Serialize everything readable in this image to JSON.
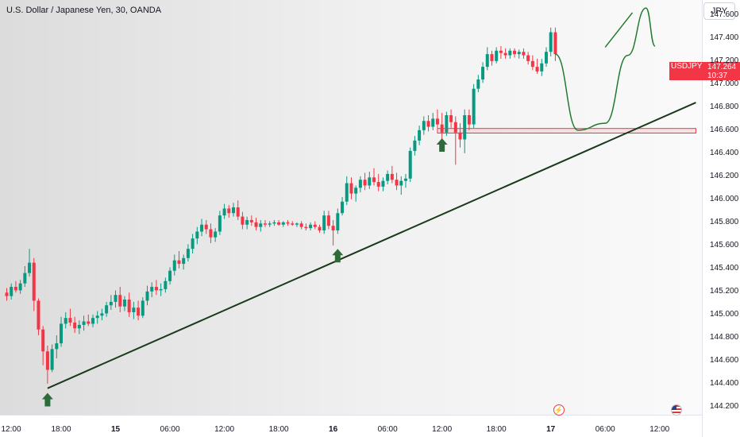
{
  "header": {
    "title": "U.S. Dollar / Japanese Yen, 30, OANDA",
    "currency_button": "JPY"
  },
  "price_badge": {
    "symbol": "USDJPY",
    "price": "147.264",
    "countdown": "10:37"
  },
  "colors": {
    "bull": "#089981",
    "bear": "#f23645",
    "trendline": "#1b3a1b",
    "zone": "#f23645",
    "arrows": "#2e6b3a",
    "projection": "#237a2f"
  },
  "events": {
    "flash_icon": "flash-icon",
    "flag_icon": "us-flag-icon"
  },
  "chart_data": {
    "type": "candlestick",
    "ylim": [
      144.13,
      147.73
    ],
    "y_ticks": [
      "147.600",
      "147.400",
      "147.200",
      "147.000",
      "146.800",
      "146.600",
      "146.400",
      "146.200",
      "146.000",
      "145.800",
      "145.600",
      "145.400",
      "145.200",
      "145.000",
      "144.800",
      "144.600",
      "144.400",
      "144.200"
    ],
    "x_ticks": [
      {
        "label": "12:00",
        "bar": 0,
        "bold": false
      },
      {
        "label": "18:00",
        "bar": 12,
        "bold": false
      },
      {
        "label": "15",
        "bar": 24,
        "bold": true
      },
      {
        "label": "06:00",
        "bar": 36,
        "bold": false
      },
      {
        "label": "12:00",
        "bar": 48,
        "bold": false
      },
      {
        "label": "18:00",
        "bar": 60,
        "bold": false
      },
      {
        "label": "16",
        "bar": 72,
        "bold": true
      },
      {
        "label": "06:00",
        "bar": 84,
        "bold": false
      },
      {
        "label": "12:00",
        "bar": 96,
        "bold": false
      },
      {
        "label": "18:00",
        "bar": 108,
        "bold": false
      },
      {
        "label": "17",
        "bar": 120,
        "bold": true
      },
      {
        "label": "06:00",
        "bar": 132,
        "bold": false
      },
      {
        "label": "12:00",
        "bar": 144,
        "bold": false
      }
    ],
    "bars": [
      [
        145.19,
        145.23,
        145.12,
        145.16
      ],
      [
        145.16,
        145.27,
        145.13,
        145.24
      ],
      [
        145.24,
        145.29,
        145.19,
        145.21
      ],
      [
        145.21,
        145.3,
        145.18,
        145.27
      ],
      [
        145.27,
        145.42,
        145.24,
        145.36
      ],
      [
        145.36,
        145.57,
        145.33,
        145.45
      ],
      [
        145.45,
        145.49,
        145.03,
        145.12
      ],
      [
        145.12,
        145.14,
        144.82,
        144.87
      ],
      [
        144.87,
        144.9,
        144.56,
        144.68
      ],
      [
        144.68,
        144.73,
        144.4,
        144.52
      ],
      [
        144.52,
        144.74,
        144.5,
        144.7
      ],
      [
        144.7,
        144.82,
        144.62,
        144.75
      ],
      [
        144.75,
        144.98,
        144.72,
        144.92
      ],
      [
        144.92,
        145.02,
        144.88,
        144.97
      ],
      [
        144.97,
        145.05,
        144.9,
        144.93
      ],
      [
        144.93,
        144.98,
        144.84,
        144.88
      ],
      [
        144.88,
        144.95,
        144.83,
        144.91
      ],
      [
        144.91,
        144.99,
        144.86,
        144.94
      ],
      [
        144.94,
        145.0,
        144.9,
        144.92
      ],
      [
        144.92,
        145.0,
        144.89,
        144.97
      ],
      [
        144.97,
        145.03,
        144.92,
        144.99
      ],
      [
        144.99,
        145.05,
        144.95,
        145.01
      ],
      [
        145.01,
        145.11,
        144.98,
        145.08
      ],
      [
        145.08,
        145.17,
        145.04,
        145.11
      ],
      [
        145.11,
        145.21,
        145.06,
        145.17
      ],
      [
        145.17,
        145.24,
        145.02,
        145.07
      ],
      [
        145.07,
        145.16,
        145.03,
        145.13
      ],
      [
        145.13,
        145.19,
        144.98,
        145.02
      ],
      [
        145.02,
        145.11,
        144.96,
        145.06
      ],
      [
        145.06,
        145.12,
        144.95,
        144.99
      ],
      [
        144.99,
        145.15,
        144.97,
        145.12
      ],
      [
        145.12,
        145.25,
        145.08,
        145.2
      ],
      [
        145.2,
        145.28,
        145.15,
        145.24
      ],
      [
        145.24,
        145.3,
        145.17,
        145.21
      ],
      [
        145.21,
        145.27,
        145.16,
        145.22
      ],
      [
        145.22,
        145.32,
        145.19,
        145.29
      ],
      [
        145.29,
        145.41,
        145.26,
        145.38
      ],
      [
        145.38,
        145.52,
        145.34,
        145.47
      ],
      [
        145.47,
        145.55,
        145.4,
        145.44
      ],
      [
        145.44,
        145.52,
        145.39,
        145.49
      ],
      [
        145.49,
        145.61,
        145.46,
        145.57
      ],
      [
        145.57,
        145.7,
        145.53,
        145.66
      ],
      [
        145.66,
        145.76,
        145.61,
        145.72
      ],
      [
        145.72,
        145.83,
        145.68,
        145.78
      ],
      [
        145.78,
        145.82,
        145.7,
        145.74
      ],
      [
        145.74,
        145.79,
        145.62,
        145.67
      ],
      [
        145.67,
        145.75,
        145.63,
        145.72
      ],
      [
        145.72,
        145.9,
        145.69,
        145.86
      ],
      [
        145.86,
        145.96,
        145.83,
        145.92
      ],
      [
        145.92,
        145.95,
        145.84,
        145.88
      ],
      [
        145.88,
        145.97,
        145.85,
        145.93
      ],
      [
        145.93,
        145.99,
        145.82,
        145.85
      ],
      [
        145.85,
        145.89,
        145.74,
        145.78
      ],
      [
        145.78,
        145.85,
        145.74,
        145.82
      ],
      [
        145.82,
        145.86,
        145.77,
        145.8
      ],
      [
        145.8,
        145.84,
        145.73,
        145.76
      ],
      [
        145.76,
        145.82,
        145.72,
        145.79
      ],
      [
        145.79,
        145.82,
        145.76,
        145.78
      ],
      [
        145.78,
        145.81,
        145.76,
        145.79
      ],
      [
        145.79,
        145.82,
        145.77,
        145.8
      ],
      [
        145.8,
        145.82,
        145.77,
        145.78
      ],
      [
        145.78,
        145.81,
        145.76,
        145.8
      ],
      [
        145.8,
        145.82,
        145.77,
        145.79
      ],
      [
        145.79,
        145.81,
        145.77,
        145.78
      ],
      [
        145.78,
        145.8,
        145.76,
        145.79
      ],
      [
        145.79,
        145.81,
        145.74,
        145.76
      ],
      [
        145.76,
        145.79,
        145.73,
        145.75
      ],
      [
        145.75,
        145.8,
        145.73,
        145.78
      ],
      [
        145.78,
        145.81,
        145.74,
        145.76
      ],
      [
        145.76,
        145.78,
        145.71,
        145.73
      ],
      [
        145.73,
        145.9,
        145.7,
        145.86
      ],
      [
        145.86,
        145.9,
        145.74,
        145.77
      ],
      [
        145.77,
        145.82,
        145.6,
        145.73
      ],
      [
        145.73,
        145.92,
        145.7,
        145.88
      ],
      [
        145.88,
        146.02,
        145.86,
        145.98
      ],
      [
        145.98,
        146.2,
        145.95,
        146.14
      ],
      [
        146.14,
        146.19,
        146.0,
        146.05
      ],
      [
        146.05,
        146.12,
        145.98,
        146.1
      ],
      [
        146.1,
        146.2,
        146.06,
        146.17
      ],
      [
        146.17,
        146.23,
        146.08,
        146.12
      ],
      [
        146.12,
        146.24,
        146.09,
        146.19
      ],
      [
        146.19,
        146.27,
        146.12,
        146.15
      ],
      [
        146.15,
        146.22,
        146.07,
        146.11
      ],
      [
        146.11,
        146.19,
        146.07,
        146.16
      ],
      [
        146.16,
        146.25,
        146.13,
        146.22
      ],
      [
        146.22,
        146.29,
        146.14,
        146.17
      ],
      [
        146.17,
        146.23,
        146.08,
        146.12
      ],
      [
        146.12,
        146.2,
        146.04,
        146.16
      ],
      [
        146.16,
        146.22,
        146.1,
        146.18
      ],
      [
        146.18,
        146.45,
        146.15,
        146.42
      ],
      [
        146.42,
        146.55,
        146.38,
        146.51
      ],
      [
        146.51,
        146.64,
        146.47,
        146.6
      ],
      [
        146.6,
        146.72,
        146.56,
        146.68
      ],
      [
        146.68,
        146.73,
        146.59,
        146.63
      ],
      [
        146.63,
        146.75,
        146.6,
        146.7
      ],
      [
        146.7,
        146.78,
        146.62,
        146.65
      ],
      [
        146.65,
        146.75,
        146.5,
        146.58
      ],
      [
        146.58,
        146.76,
        146.55,
        146.73
      ],
      [
        146.73,
        146.78,
        146.62,
        146.67
      ],
      [
        146.67,
        146.72,
        146.3,
        146.58
      ],
      [
        146.58,
        146.66,
        146.45,
        146.52
      ],
      [
        146.52,
        146.78,
        146.4,
        146.73
      ],
      [
        146.73,
        146.78,
        146.6,
        146.65
      ],
      [
        146.65,
        147.0,
        146.62,
        146.96
      ],
      [
        146.96,
        147.08,
        146.93,
        147.04
      ],
      [
        147.04,
        147.19,
        147.01,
        147.15
      ],
      [
        147.15,
        147.32,
        147.12,
        147.26
      ],
      [
        147.26,
        147.29,
        147.16,
        147.2
      ],
      [
        147.2,
        147.32,
        147.18,
        147.29
      ],
      [
        147.29,
        147.33,
        147.22,
        147.27
      ],
      [
        147.27,
        147.31,
        147.22,
        147.25
      ],
      [
        147.25,
        147.31,
        147.22,
        147.29
      ],
      [
        147.29,
        147.31,
        147.23,
        147.26
      ],
      [
        147.26,
        147.3,
        147.22,
        147.28
      ],
      [
        147.28,
        147.31,
        147.22,
        147.25
      ],
      [
        147.25,
        147.28,
        147.17,
        147.2
      ],
      [
        147.2,
        147.25,
        147.12,
        147.15
      ],
      [
        147.15,
        147.22,
        147.09,
        147.11
      ],
      [
        147.11,
        147.22,
        147.07,
        147.18
      ],
      [
        147.18,
        147.32,
        147.15,
        147.28
      ],
      [
        147.28,
        147.49,
        147.24,
        147.45
      ],
      [
        147.45,
        147.49,
        147.2,
        147.26
      ]
    ],
    "drawings": {
      "trendline": {
        "from": {
          "bar": 9,
          "price": 144.36
        },
        "to": {
          "bar": 152,
          "price": 146.84
        }
      },
      "support_zone": {
        "from_bar": 95,
        "to_bar": 152,
        "top": 146.615,
        "bottom": 146.575
      },
      "projection_path": [
        [
          121,
          147.26
        ],
        [
          126,
          146.6
        ],
        [
          132,
          146.66
        ],
        [
          137,
          147.25
        ],
        [
          141,
          147.66
        ],
        [
          143,
          147.33
        ]
      ],
      "projection_segment": [
        [
          132,
          147.32
        ],
        [
          138,
          147.62
        ]
      ],
      "arrows": [
        {
          "bar": 9,
          "price": 144.32
        },
        {
          "bar": 73,
          "price": 145.57
        },
        {
          "bar": 96,
          "price": 146.53
        }
      ]
    }
  }
}
